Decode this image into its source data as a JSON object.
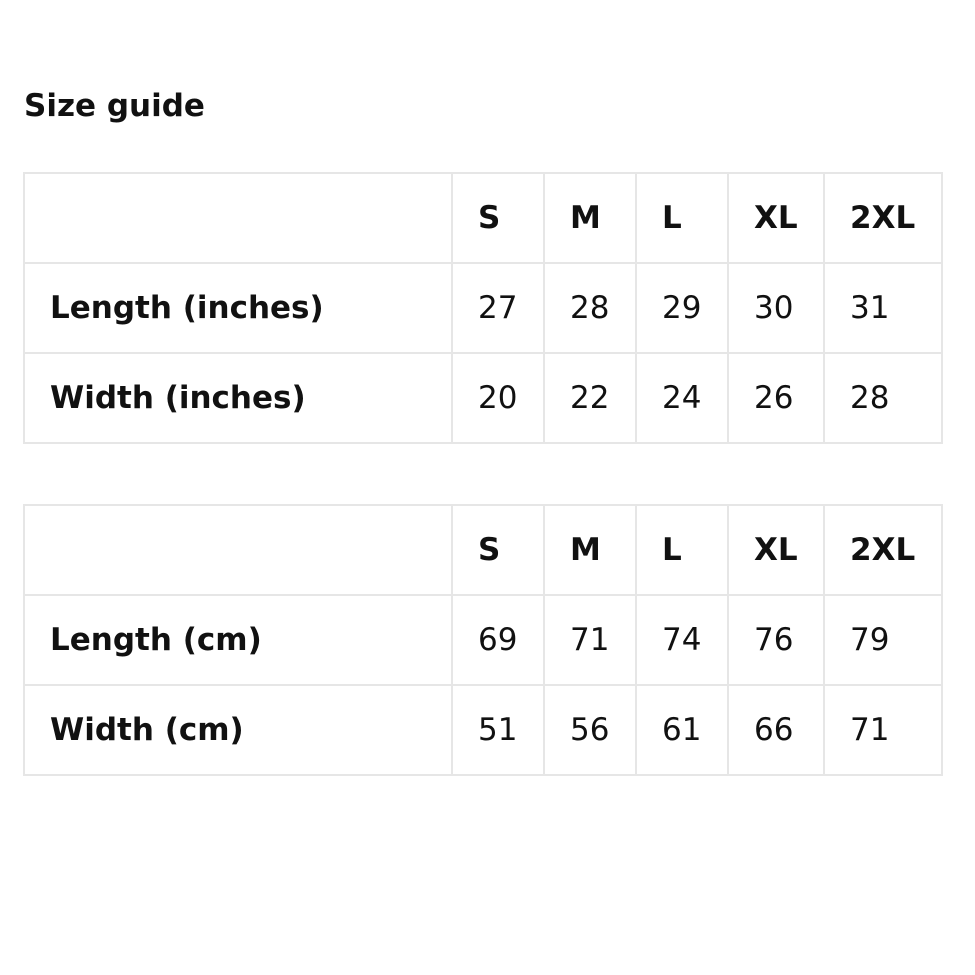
{
  "title": "Size guide",
  "tables": [
    {
      "headers": [
        "S",
        "M",
        "L",
        "XL",
        "2XL"
      ],
      "rows": [
        {
          "label": "Length (inches)",
          "values": [
            "27",
            "28",
            "29",
            "30",
            "31"
          ]
        },
        {
          "label": "Width (inches)",
          "values": [
            "20",
            "22",
            "24",
            "26",
            "28"
          ]
        }
      ]
    },
    {
      "headers": [
        "S",
        "M",
        "L",
        "XL",
        "2XL"
      ],
      "rows": [
        {
          "label": "Length (cm)",
          "values": [
            "69",
            "71",
            "74",
            "76",
            "79"
          ]
        },
        {
          "label": "Width (cm)",
          "values": [
            "51",
            "56",
            "61",
            "66",
            "71"
          ]
        }
      ]
    }
  ]
}
